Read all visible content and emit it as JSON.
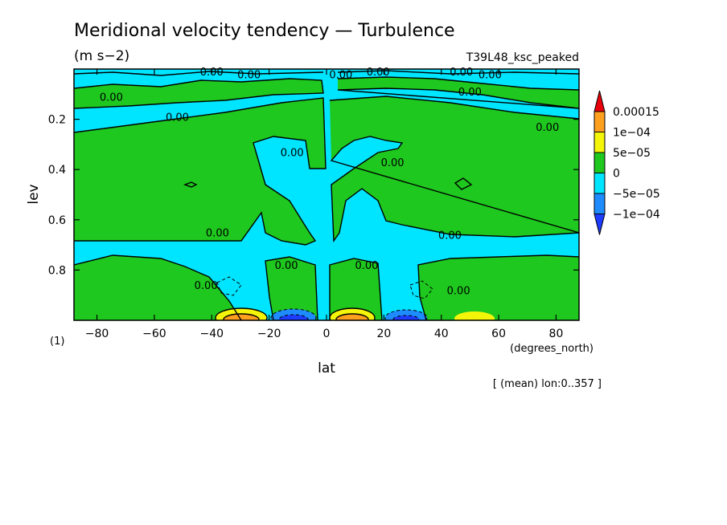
{
  "chart_data": {
    "type": "heatmap",
    "title": "Meridional velocity tendency — Turbulence",
    "units": "(m s−2)",
    "run": "T39L48_ksc_peaked",
    "xlabel": "lat",
    "x_units": "(degrees_north)",
    "ylabel": "lev",
    "y_units": "(1)",
    "mean_note": "[ (mean) lon:0..357 ]",
    "xlim": [
      -88,
      88
    ],
    "ylim": [
      1.0,
      0.0
    ],
    "x_ticks": [
      -80,
      -60,
      -40,
      -20,
      0,
      20,
      40,
      60,
      80
    ],
    "x_tick_labels": [
      "−80",
      "−60",
      "−40",
      "−20",
      "0",
      "20",
      "40",
      "60",
      "80"
    ],
    "y_ticks": [
      0.2,
      0.4,
      0.6,
      0.8
    ],
    "y_tick_labels": [
      "0.2",
      "0.4",
      "0.6",
      "0.8"
    ],
    "contour_labels": [
      {
        "text": "0.00",
        "lat": -40,
        "lev": 0.01
      },
      {
        "text": "0.00",
        "lat": -27,
        "lev": 0.02
      },
      {
        "text": "0.00",
        "lat": 5,
        "lev": 0.02
      },
      {
        "text": "0.00",
        "lat": 18,
        "lev": 0.01
      },
      {
        "text": "0.00",
        "lat": 47,
        "lev": 0.01
      },
      {
        "text": "0.00",
        "lat": 57,
        "lev": 0.02
      },
      {
        "text": "0.00",
        "lat": -75,
        "lev": 0.11
      },
      {
        "text": "0.00",
        "lat": 50,
        "lev": 0.09
      },
      {
        "text": "0.00",
        "lat": -52,
        "lev": 0.19
      },
      {
        "text": "0.00",
        "lat": 77,
        "lev": 0.23
      },
      {
        "text": "0.00",
        "lat": -12,
        "lev": 0.33
      },
      {
        "text": "0.00",
        "lat": 23,
        "lev": 0.37
      },
      {
        "text": "0.00",
        "lat": -38,
        "lev": 0.65
      },
      {
        "text": "0.00",
        "lat": 43,
        "lev": 0.66
      },
      {
        "text": "0.00",
        "lat": -14,
        "lev": 0.78
      },
      {
        "text": "0.00",
        "lat": 14,
        "lev": 0.78
      },
      {
        "text": "0.00",
        "lat": -42,
        "lev": 0.86
      },
      {
        "text": "0.00",
        "lat": 46,
        "lev": 0.88
      }
    ],
    "colorbar": {
      "levels": [
        "0.00015",
        "1e−04",
        "5e−05",
        "0",
        "−5e−05",
        "−1e−04"
      ],
      "colors": [
        "#e8000b",
        "#ff9f1e",
        "#f5f50a",
        "#1ec81e",
        "#00e5ff",
        "#1e8cff",
        "#1e3cff"
      ]
    }
  },
  "colors": {
    "neg_strong": "#1e3cff",
    "neg_mid": "#1e8cff",
    "neg_weak": "#00e5ff",
    "pos_weak": "#1ec81e",
    "pos_mid": "#f5f50a",
    "pos_strong": "#ff9f1e",
    "pos_max": "#e8000b"
  }
}
